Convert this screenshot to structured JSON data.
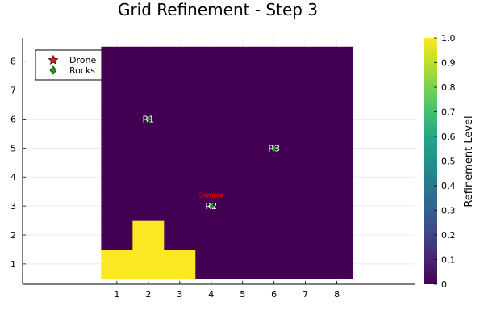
{
  "chart_data": {
    "type": "heatmap",
    "title": "Grid Refinement - Step 3",
    "xlim": [
      -2,
      10.5
    ],
    "ylim": [
      0.3,
      8.8
    ],
    "x_ticks": [
      1,
      2,
      3,
      4,
      5,
      6,
      7,
      8
    ],
    "y_ticks": [
      1,
      2,
      3,
      4,
      5,
      6,
      7,
      8
    ],
    "grid": true,
    "grid_cells": [
      {
        "x": 1,
        "y": 1,
        "value": 1.0
      },
      {
        "x": 2,
        "y": 1,
        "value": 1.0
      },
      {
        "x": 3,
        "y": 1,
        "value": 1.0
      },
      {
        "x": 2,
        "y": 2,
        "value": 1.0
      }
    ],
    "grid_default_value": 0.0,
    "grid_extent": {
      "x": [
        1,
        8
      ],
      "y": [
        1,
        8
      ]
    },
    "colorbar": {
      "label": "Refinement Level",
      "range": [
        0,
        1
      ],
      "ticks": [
        "0",
        "0.1",
        "0.2",
        "0.3",
        "0.4",
        "0.5",
        "0.6",
        "0.7",
        "0.8",
        "0.9",
        "1.0"
      ],
      "colormap": "viridis"
    },
    "legend": {
      "placement": "top-left",
      "entries": [
        {
          "name": "Drone",
          "marker": "star",
          "color": "#e41a1c"
        },
        {
          "name": "Rocks",
          "marker": "diamond",
          "color": "#1a9c1a"
        }
      ]
    },
    "rocks": [
      {
        "label": "R1",
        "x": 2,
        "y": 6
      },
      {
        "label": "R2",
        "x": 4,
        "y": 3
      },
      {
        "label": "R3",
        "x": 6,
        "y": 5
      }
    ],
    "annotations": [
      {
        "text": "Sample",
        "x": 4,
        "y": 3.3,
        "color": "#ff0000"
      }
    ]
  }
}
